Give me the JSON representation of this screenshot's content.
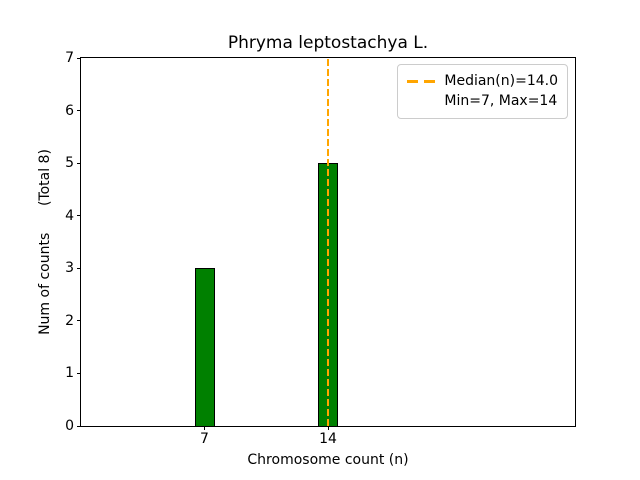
{
  "chart_data": {
    "type": "bar",
    "title": "Phryma leptostachya L.",
    "xlabel": "Chromosome count (n)",
    "ylabel": "Num of counts      (Total 8)",
    "categories": [
      7,
      14
    ],
    "values": [
      3,
      5
    ],
    "total_counts_label": "(Total 8)",
    "xlim": [
      0,
      28
    ],
    "ylim": [
      0,
      7
    ],
    "yticks": [
      0,
      1,
      2,
      3,
      4,
      5,
      6,
      7
    ],
    "xticks": [
      7,
      14
    ],
    "grid": false,
    "bar_color": "#008000",
    "bar_edge_color": "#000000",
    "median_line": {
      "x": 14,
      "color": "#FFA500",
      "style": "dashed"
    },
    "legend": {
      "position": "upper-right",
      "entries": [
        "Median(n)=14.0",
        "Min=7, Max=14"
      ]
    }
  }
}
